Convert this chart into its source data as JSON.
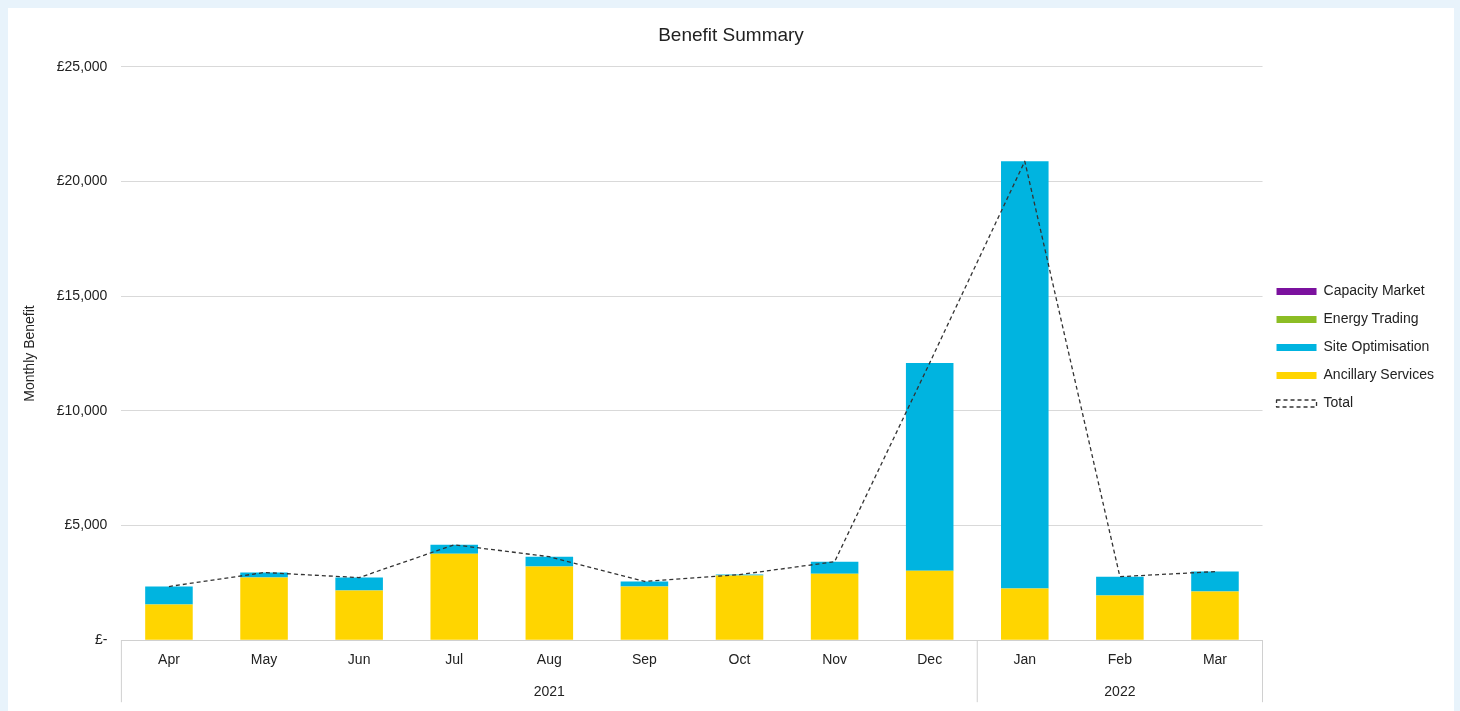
{
  "chart_data": {
    "type": "bar",
    "title": "Benefit Summary",
    "ylabel": "Monthly Benefit",
    "stacked": true,
    "categories": [
      "Apr",
      "May",
      "Jun",
      "Jul",
      "Aug",
      "Sep",
      "Oct",
      "Nov",
      "Dec",
      "Jan",
      "Feb",
      "Mar"
    ],
    "series": [
      {
        "name": "Ancillary Services",
        "color": "#ffd500",
        "values": [
          1560,
          2730,
          2170,
          3770,
          3210,
          2340,
          2820,
          2900,
          3030,
          2250,
          1950,
          2120
        ]
      },
      {
        "name": "Site Optimisation",
        "color": "#00b4e0",
        "values": [
          780,
          220,
          560,
          390,
          430,
          220,
          40,
          520,
          9060,
          18630,
          820,
          870
        ]
      },
      {
        "name": "Energy Trading",
        "color": "#8cbd24",
        "values": [
          0,
          0,
          0,
          0,
          0,
          0,
          0,
          0,
          0,
          0,
          0,
          0
        ]
      },
      {
        "name": "Capacity Market",
        "color": "#7b119e",
        "values": [
          0,
          0,
          0,
          0,
          0,
          0,
          0,
          0,
          0,
          0,
          0,
          0
        ]
      },
      {
        "name": "Total",
        "type": "line",
        "color": "#333333",
        "line_style": "dashed",
        "marker": "none",
        "values": [
          2340,
          2950,
          2730,
          4160,
          3640,
          2560,
          2860,
          3420,
          12090,
          20880,
          2770,
          2990
        ]
      }
    ],
    "ylim": [
      0,
      25000
    ],
    "yticks": [
      {
        "value": 0,
        "label": "£-"
      },
      {
        "value": 5000,
        "label": "£5,000"
      },
      {
        "value": 10000,
        "label": "£10,000"
      },
      {
        "value": 15000,
        "label": "£15,000"
      },
      {
        "value": 20000,
        "label": "£20,000"
      },
      {
        "value": 25000,
        "label": "£25,000"
      }
    ],
    "grid": "y",
    "legend": "right",
    "annotations": [
      "2021",
      "2022"
    ]
  }
}
